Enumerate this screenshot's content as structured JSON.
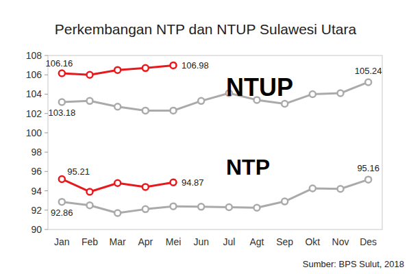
{
  "chart_data": {
    "type": "line",
    "title": "Perkembangan NTP dan NTUP Sulawesi Utara",
    "source": "Sumber: BPS Sulut, 2018",
    "annotations": [
      {
        "text": "NTUP"
      },
      {
        "text": "NTP"
      }
    ],
    "categories": [
      "Jan",
      "Feb",
      "Mar",
      "Apr",
      "Mei",
      "Jun",
      "Jul",
      "Agt",
      "Sep",
      "Okt",
      "Nov",
      "Des"
    ],
    "ylim": [
      90,
      108
    ],
    "yticks": [
      90,
      92,
      94,
      96,
      98,
      100,
      102,
      104,
      106,
      108
    ],
    "grid": false,
    "series": [
      {
        "color": "#e8191c",
        "marker": "circle",
        "values": [
          106.16,
          106.0,
          106.5,
          106.7,
          106.98,
          null,
          null,
          null,
          null,
          null,
          null,
          null
        ],
        "value_labels": [
          "106.16",
          null,
          null,
          null,
          "106.98",
          null,
          null,
          null,
          null,
          null,
          null,
          null
        ]
      },
      {
        "color": "#aaaaaa",
        "marker": "circle",
        "values": [
          103.18,
          103.3,
          102.7,
          102.3,
          102.3,
          103.3,
          104.1,
          103.4,
          103.0,
          104.0,
          104.1,
          105.24
        ],
        "value_labels": [
          "103.18",
          null,
          null,
          null,
          null,
          null,
          null,
          null,
          null,
          null,
          null,
          "105.24"
        ]
      },
      {
        "color": "#e8191c",
        "marker": "circle",
        "values": [
          95.21,
          93.9,
          94.8,
          94.4,
          94.87,
          null,
          null,
          null,
          null,
          null,
          null,
          null
        ],
        "value_labels": [
          "95.21",
          null,
          null,
          null,
          "94.87",
          null,
          null,
          null,
          null,
          null,
          null,
          null
        ]
      },
      {
        "color": "#aaaaaa",
        "marker": "circle",
        "values": [
          92.86,
          92.5,
          91.7,
          92.1,
          92.4,
          92.35,
          92.3,
          92.25,
          92.9,
          94.25,
          94.2,
          95.16
        ],
        "value_labels": [
          "92.86",
          null,
          null,
          null,
          null,
          null,
          null,
          null,
          null,
          null,
          null,
          "95.16"
        ]
      }
    ]
  }
}
